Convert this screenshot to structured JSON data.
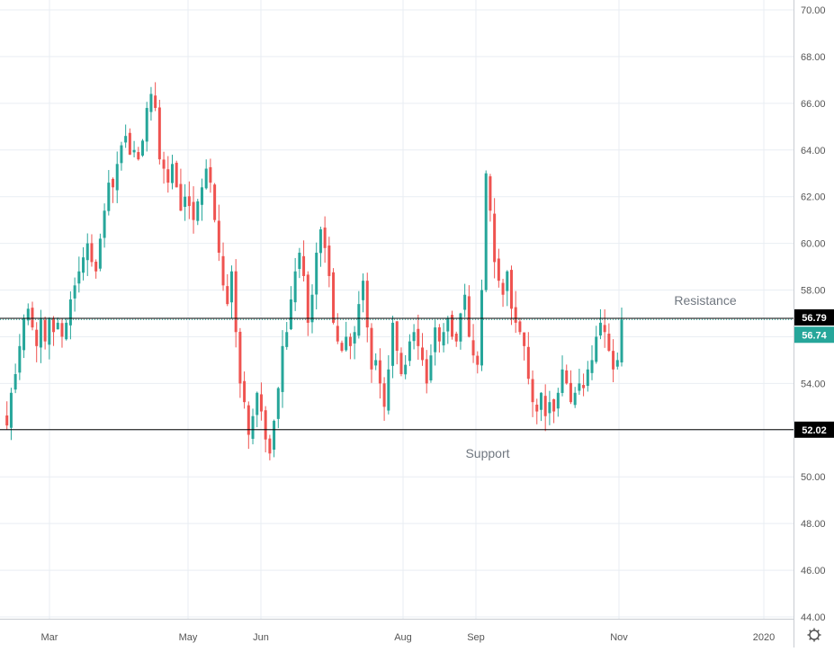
{
  "chart_data": {
    "type": "candlestick",
    "x_tick_labels": [
      "Mar",
      "May",
      "Jun",
      "Aug",
      "Sep",
      "Nov",
      "2020"
    ],
    "y_tick_labels": [
      "70.00",
      "68.00",
      "66.00",
      "64.00",
      "62.00",
      "60.00",
      "58.00",
      "56.00",
      "54.00",
      "52.00",
      "50.00",
      "48.00",
      "46.00",
      "44.00"
    ],
    "ylim": [
      43.5,
      70.4
    ],
    "grid": true,
    "annotations": {
      "resistance": {
        "label": "Resistance",
        "value": 56.79,
        "price_label": "56.79"
      },
      "support": {
        "label": "Support",
        "value": 52.02,
        "price_label": "52.02"
      },
      "last_price": {
        "value": 56.74,
        "price_label": "56.74"
      }
    },
    "colors": {
      "up": "#26a69a",
      "down": "#ef5350",
      "grid": "#e9eef3",
      "axis_text": "#555555",
      "line": "#000000",
      "label_bg": "#000000",
      "last_price_bg": "#26a69a"
    },
    "path": [
      52.8,
      52.2,
      53.6,
      54.4,
      55.6,
      56.8,
      57.2,
      56.4,
      55.6,
      56.8,
      55.8,
      56.8,
      56.2,
      56.6,
      56.0,
      56.6,
      57.6,
      58.2,
      58.8,
      59.4,
      60.0,
      59.2,
      58.8,
      60.2,
      61.4,
      62.6,
      62.4,
      63.4,
      64.2,
      64.6,
      63.8,
      64.0,
      63.6,
      64.4,
      65.8,
      66.4,
      65.8,
      63.6,
      63.2,
      62.6,
      63.4,
      62.4,
      61.4,
      62.0,
      61.6,
      61.0,
      61.8,
      62.4,
      63.2,
      62.6,
      61.0,
      59.6,
      58.2,
      57.4,
      58.8,
      56.2,
      54.0,
      53.2,
      51.8,
      52.6,
      53.6,
      52.8,
      51.6,
      51.0,
      52.4,
      53.8,
      55.6,
      56.2,
      57.6,
      58.8,
      59.6,
      58.6,
      56.6,
      57.8,
      59.6,
      60.6,
      59.8,
      58.6,
      56.6,
      55.8,
      55.4,
      56.0,
      55.6,
      56.2,
      57.4,
      58.4,
      56.4,
      54.6,
      55.0,
      54.0,
      53.0,
      54.6,
      56.6,
      55.4,
      54.4,
      54.8,
      55.8,
      56.2,
      55.6,
      55.0,
      54.0,
      55.2,
      56.4,
      55.8,
      56.2,
      56.8,
      56.0,
      55.8,
      57.0,
      57.8,
      56.0,
      55.2,
      54.8,
      58.0,
      63.0,
      61.4,
      59.2,
      58.4,
      57.8,
      58.8,
      57.2,
      56.6,
      56.2,
      55.6,
      54.2,
      53.2,
      52.8,
      53.6,
      52.6,
      53.2,
      52.8,
      53.6,
      54.6,
      54.0,
      53.2,
      53.6,
      54.0,
      53.8,
      54.6,
      55.0,
      56.0,
      56.6,
      56.2,
      55.4,
      54.6,
      55.0,
      56.74
    ]
  }
}
